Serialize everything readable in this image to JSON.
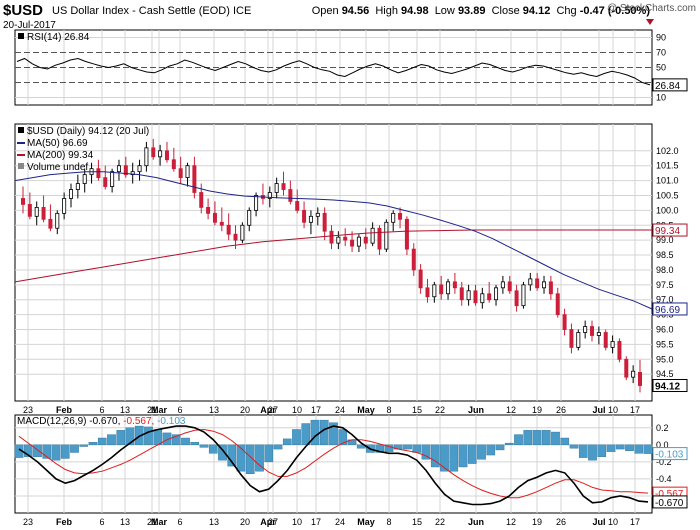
{
  "header": {
    "symbol": "$USD",
    "subtitle": "US Dollar Index - Cash Settle (EOD) ICE",
    "date": "20-Jul-2017",
    "open_label": "Open",
    "open": "94.56",
    "high_label": "High",
    "high": "94.98",
    "low_label": "Low",
    "low": "93.89",
    "close_label": "Close",
    "close": "94.12",
    "chg_label": "Chg",
    "chg": "-0.47 (-0.50%)",
    "chg_icon": "down-triangle-icon",
    "watermark": "@ StockCharts.com"
  },
  "colors": {
    "up": "#000000",
    "down": "#cc1f3a",
    "ma50": "#1d2488",
    "ma200": "#b0102a",
    "macd": "#000000",
    "signal": "#dd1f1f",
    "histogram": "#4a9bc8",
    "grid": "#d4d4d4"
  },
  "chart_data": [
    {
      "type": "line",
      "name": "rsi-panel",
      "legend": "RSI(14) 26.84",
      "value": 26.84,
      "value_label": "26.84",
      "ylim": [
        0,
        100
      ],
      "yticks": [
        90,
        70,
        50,
        30,
        10
      ],
      "ytick_labels": [
        "90",
        "70",
        "50",
        "30",
        "10"
      ],
      "series": [
        {
          "values": [
            58,
            62,
            55,
            50,
            48,
            53,
            56,
            60,
            62,
            58,
            55,
            52,
            50,
            52,
            55,
            50,
            47,
            44,
            43,
            47,
            52,
            55,
            60,
            57,
            53,
            49,
            46,
            50,
            54,
            58,
            55,
            50,
            46,
            44,
            47,
            52,
            56,
            59,
            55,
            50,
            47,
            45,
            40,
            38,
            43,
            48,
            52,
            55,
            52,
            47,
            43,
            46,
            50,
            54,
            52,
            47,
            44,
            42,
            45,
            48,
            52,
            56,
            54,
            50,
            46,
            44,
            47,
            51,
            53,
            52,
            49,
            46,
            43,
            41,
            43,
            40,
            38,
            42,
            45,
            43,
            40,
            36,
            30,
            26.84
          ]
        }
      ]
    },
    {
      "type": "bar",
      "name": "price-panel",
      "legend": {
        "main": "$USD (Daily) 94.12 (20 Jul)",
        "ma50": "MA(50) 96.69",
        "ma200": "MA(200) 99.34",
        "volume": "Volume undef"
      },
      "ylim": [
        93.6,
        102.9
      ],
      "yticks": [
        102,
        101.5,
        101,
        100.5,
        100,
        99.5,
        99,
        98.5,
        98,
        97.5,
        97,
        96.5,
        96,
        95.5,
        95,
        94.5
      ],
      "ytick_labels": [
        "102.0",
        "101.5",
        "101.0",
        "100.5",
        "100.0",
        "99.5",
        "99.0",
        "98.5",
        "98.0",
        "97.5",
        "97.0",
        "96.5",
        "96.0",
        "95.5",
        "95.0",
        "94.5"
      ],
      "price_tags": [
        {
          "label": "99.34",
          "value": 99.34,
          "color": "#b0102a"
        },
        {
          "label": "96.69",
          "value": 96.69,
          "color": "#1d2488"
        },
        {
          "label": "94.12",
          "value": 94.12,
          "color": "#000000"
        }
      ],
      "ohlc": [
        [
          100.4,
          100.8,
          99.9,
          100.2
        ],
        [
          100.2,
          100.6,
          99.7,
          99.8
        ],
        [
          99.8,
          100.3,
          99.5,
          100.1
        ],
        [
          100.1,
          100.5,
          99.6,
          99.7
        ],
        [
          99.7,
          100.2,
          99.3,
          99.4
        ],
        [
          99.4,
          100.0,
          99.2,
          99.9
        ],
        [
          99.9,
          100.6,
          99.7,
          100.4
        ],
        [
          100.4,
          100.9,
          100.1,
          100.7
        ],
        [
          100.7,
          101.2,
          100.4,
          100.9
        ],
        [
          100.9,
          101.4,
          100.6,
          101.2
        ],
        [
          101.2,
          101.6,
          100.9,
          101.4
        ],
        [
          101.4,
          101.7,
          101.0,
          101.1
        ],
        [
          101.1,
          101.5,
          100.7,
          100.8
        ],
        [
          100.8,
          101.4,
          100.6,
          101.3
        ],
        [
          101.3,
          101.7,
          101.0,
          101.5
        ],
        [
          101.5,
          101.8,
          101.1,
          101.2
        ],
        [
          101.2,
          101.6,
          100.9,
          101.3
        ],
        [
          101.3,
          101.7,
          101.0,
          101.5
        ],
        [
          101.5,
          102.3,
          101.3,
          102.1
        ],
        [
          102.1,
          102.4,
          101.7,
          101.8
        ],
        [
          101.8,
          102.2,
          101.5,
          102.0
        ],
        [
          102.0,
          102.3,
          101.6,
          101.7
        ],
        [
          101.7,
          102.1,
          101.3,
          101.4
        ],
        [
          101.4,
          101.8,
          100.9,
          101.1
        ],
        [
          101.1,
          101.6,
          100.8,
          101.5
        ],
        [
          101.5,
          101.8,
          100.4,
          100.6
        ],
        [
          100.6,
          100.9,
          99.9,
          100.1
        ],
        [
          100.1,
          100.4,
          99.7,
          99.9
        ],
        [
          99.9,
          100.3,
          99.5,
          99.6
        ],
        [
          99.6,
          100.1,
          99.3,
          99.5
        ],
        [
          99.5,
          99.9,
          99.0,
          99.2
        ],
        [
          99.2,
          99.5,
          98.7,
          99.0
        ],
        [
          99.0,
          99.6,
          98.9,
          99.5
        ],
        [
          99.5,
          100.1,
          99.3,
          100.0
        ],
        [
          100.0,
          100.6,
          99.8,
          100.5
        ],
        [
          100.5,
          100.9,
          100.2,
          100.4
        ],
        [
          100.4,
          100.8,
          100.1,
          100.6
        ],
        [
          100.6,
          101.1,
          100.4,
          100.9
        ],
        [
          100.9,
          101.3,
          100.5,
          100.7
        ],
        [
          100.7,
          101.0,
          100.2,
          100.3
        ],
        [
          100.3,
          100.7,
          99.9,
          100.0
        ],
        [
          100.0,
          100.3,
          99.4,
          99.6
        ],
        [
          99.6,
          100.0,
          99.2,
          99.8
        ],
        [
          99.8,
          100.1,
          99.5,
          99.9
        ],
        [
          99.9,
          100.1,
          99.0,
          99.3
        ],
        [
          99.3,
          99.5,
          98.7,
          98.9
        ],
        [
          98.9,
          99.3,
          98.7,
          99.1
        ],
        [
          99.1,
          99.4,
          98.8,
          99.0
        ],
        [
          99.0,
          99.3,
          98.6,
          98.8
        ],
        [
          98.8,
          99.2,
          98.6,
          99.1
        ],
        [
          99.1,
          99.4,
          98.7,
          98.9
        ],
        [
          98.9,
          99.6,
          98.8,
          99.4
        ],
        [
          99.4,
          99.5,
          98.5,
          98.7
        ],
        [
          98.7,
          99.7,
          98.6,
          99.6
        ],
        [
          99.6,
          100.0,
          99.3,
          99.9
        ],
        [
          99.9,
          100.1,
          99.4,
          99.7
        ],
        [
          99.7,
          99.8,
          98.5,
          98.7
        ],
        [
          98.7,
          98.9,
          97.8,
          98.0
        ],
        [
          98.0,
          98.2,
          97.2,
          97.4
        ],
        [
          97.4,
          97.7,
          96.9,
          97.1
        ],
        [
          97.1,
          97.6,
          96.9,
          97.5
        ],
        [
          97.5,
          97.8,
          97.0,
          97.2
        ],
        [
          97.2,
          97.7,
          97.0,
          97.6
        ],
        [
          97.6,
          97.9,
          97.2,
          97.4
        ],
        [
          97.4,
          97.6,
          96.8,
          97.0
        ],
        [
          97.0,
          97.5,
          96.8,
          97.3
        ],
        [
          97.3,
          97.5,
          96.8,
          96.9
        ],
        [
          96.9,
          97.4,
          96.7,
          97.2
        ],
        [
          97.2,
          97.6,
          96.9,
          97.0
        ],
        [
          97.0,
          97.5,
          96.8,
          97.4
        ],
        [
          97.4,
          97.8,
          97.2,
          97.6
        ],
        [
          97.6,
          97.8,
          97.2,
          97.3
        ],
        [
          97.3,
          97.5,
          96.6,
          96.8
        ],
        [
          96.8,
          97.6,
          96.7,
          97.5
        ],
        [
          97.5,
          97.9,
          97.3,
          97.7
        ],
        [
          97.7,
          97.9,
          97.3,
          97.4
        ],
        [
          97.4,
          97.8,
          97.2,
          97.6
        ],
        [
          97.6,
          97.8,
          97.0,
          97.2
        ],
        [
          97.2,
          97.4,
          96.4,
          96.5
        ],
        [
          96.5,
          96.7,
          95.8,
          96.0
        ],
        [
          96.0,
          96.2,
          95.2,
          95.4
        ],
        [
          95.4,
          96.0,
          95.3,
          95.9
        ],
        [
          95.9,
          96.3,
          95.7,
          96.1
        ],
        [
          96.1,
          96.3,
          95.6,
          95.8
        ],
        [
          95.8,
          96.1,
          95.5,
          95.9
        ],
        [
          95.9,
          96.0,
          95.3,
          95.4
        ],
        [
          95.4,
          95.8,
          95.2,
          95.6
        ],
        [
          95.6,
          95.7,
          94.9,
          95.0
        ],
        [
          95.0,
          95.1,
          94.3,
          94.4
        ],
        [
          94.4,
          94.8,
          94.2,
          94.6
        ],
        [
          94.56,
          94.98,
          93.89,
          94.12
        ]
      ],
      "ma50": [
        101.0,
        101.1,
        101.2,
        101.25,
        101.3,
        101.3,
        101.25,
        101.2,
        101.1,
        100.95,
        100.8,
        100.65,
        100.55,
        100.48,
        100.45,
        100.42,
        100.4,
        100.38,
        100.35,
        100.3,
        100.25,
        100.15,
        100.0,
        99.85,
        99.68,
        99.5,
        99.3,
        99.05,
        98.75,
        98.45,
        98.15,
        97.85,
        97.6,
        97.35,
        97.15,
        96.95,
        96.69
      ],
      "ma200": [
        97.6,
        97.7,
        97.8,
        97.9,
        98.0,
        98.1,
        98.2,
        98.3,
        98.4,
        98.5,
        98.6,
        98.7,
        98.8,
        98.87,
        98.95,
        99.0,
        99.05,
        99.1,
        99.15,
        99.2,
        99.24,
        99.27,
        99.3,
        99.31,
        99.32,
        99.33,
        99.34,
        99.34,
        99.34,
        99.34,
        99.34,
        99.34,
        99.34,
        99.34,
        99.34,
        99.34,
        99.34
      ]
    },
    {
      "type": "line",
      "name": "macd-panel",
      "legend": {
        "label": "MACD(12,26,9)",
        "macd": "-0.670",
        "signal": "-0.567",
        "hist": "-0.103"
      },
      "ylim": [
        -0.8,
        0.35
      ],
      "yticks": [
        0.2,
        0.0,
        -0.2,
        -0.4,
        -0.6
      ],
      "ytick_labels": [
        "0.2",
        "0.0",
        "-0.2",
        "-0.4",
        "-0.6"
      ],
      "tags": [
        {
          "label": "-0.103",
          "value": -0.103,
          "color": "#4a9bc8"
        },
        {
          "label": "-0.567",
          "value": -0.567,
          "color": "#dd1f1f"
        },
        {
          "label": "-0.670",
          "value": -0.67,
          "color": "#000000"
        }
      ],
      "series": [
        {
          "name": "MACD(12,26,9)",
          "values": [
            -0.05,
            -0.12,
            -0.2,
            -0.3,
            -0.4,
            -0.45,
            -0.42,
            -0.36,
            -0.3,
            -0.23,
            -0.15,
            -0.06,
            0.02,
            0.1,
            0.15,
            0.18,
            0.2,
            0.22,
            0.22,
            0.2,
            0.15,
            0.06,
            -0.06,
            -0.2,
            -0.35,
            -0.48,
            -0.55,
            -0.52,
            -0.42,
            -0.3,
            -0.15,
            -0.02,
            0.1,
            0.18,
            0.22,
            0.2,
            0.12,
            0.02,
            -0.05,
            -0.08,
            -0.1,
            -0.1,
            -0.12,
            -0.18,
            -0.3,
            -0.45,
            -0.58,
            -0.66,
            -0.68,
            -0.7,
            -0.7,
            -0.69,
            -0.66,
            -0.6,
            -0.5,
            -0.42,
            -0.38,
            -0.33,
            -0.3,
            -0.33,
            -0.45,
            -0.6,
            -0.68,
            -0.67,
            -0.62,
            -0.6,
            -0.62,
            -0.66,
            -0.67
          ]
        },
        {
          "name": "signal",
          "values": [
            0.1,
            0.02,
            -0.06,
            -0.14,
            -0.22,
            -0.29,
            -0.33,
            -0.34,
            -0.33,
            -0.31,
            -0.27,
            -0.23,
            -0.18,
            -0.12,
            -0.06,
            0.0,
            0.06,
            0.1,
            0.14,
            0.17,
            0.18,
            0.16,
            0.12,
            0.05,
            -0.04,
            -0.14,
            -0.24,
            -0.32,
            -0.37,
            -0.37,
            -0.33,
            -0.27,
            -0.19,
            -0.11,
            -0.04,
            0.02,
            0.06,
            0.06,
            0.04,
            0.01,
            -0.02,
            -0.05,
            -0.07,
            -0.09,
            -0.13,
            -0.19,
            -0.27,
            -0.35,
            -0.42,
            -0.48,
            -0.53,
            -0.57,
            -0.6,
            -0.62,
            -0.62,
            -0.59,
            -0.55,
            -0.5,
            -0.45,
            -0.41,
            -0.41,
            -0.45,
            -0.5,
            -0.53,
            -0.54,
            -0.55,
            -0.55,
            -0.56,
            -0.567
          ]
        },
        {
          "name": "histogram",
          "values": [
            -0.15,
            -0.14,
            -0.14,
            -0.16,
            -0.18,
            -0.16,
            -0.09,
            -0.02,
            0.03,
            0.08,
            0.12,
            0.17,
            0.2,
            0.22,
            0.21,
            0.18,
            0.14,
            0.12,
            0.08,
            0.03,
            -0.03,
            -0.1,
            -0.18,
            -0.25,
            -0.31,
            -0.34,
            -0.31,
            -0.2,
            -0.05,
            0.07,
            0.18,
            0.25,
            0.29,
            0.29,
            0.26,
            0.18,
            0.06,
            -0.04,
            -0.09,
            -0.09,
            -0.08,
            -0.05,
            -0.05,
            -0.09,
            -0.17,
            -0.26,
            -0.31,
            -0.31,
            -0.26,
            -0.22,
            -0.17,
            -0.12,
            -0.06,
            0.02,
            0.12,
            0.17,
            0.17,
            0.17,
            0.15,
            0.08,
            -0.04,
            -0.15,
            -0.18,
            -0.14,
            -0.08,
            -0.05,
            -0.07,
            -0.1,
            -0.103
          ]
        }
      ]
    }
  ],
  "x_axis": {
    "labels": [
      {
        "text": "23",
        "bold": false
      },
      {
        "text": "Feb",
        "bold": true
      },
      {
        "text": "6",
        "bold": false
      },
      {
        "text": "13",
        "bold": false
      },
      {
        "text": "21",
        "bold": false
      },
      {
        "text": "Mar",
        "bold": true
      },
      {
        "text": "6",
        "bold": false
      },
      {
        "text": "13",
        "bold": false
      },
      {
        "text": "20",
        "bold": false
      },
      {
        "text": "27",
        "bold": false
      },
      {
        "text": "Apr",
        "bold": true
      },
      {
        "text": "10",
        "bold": false
      },
      {
        "text": "17",
        "bold": false
      },
      {
        "text": "24",
        "bold": false
      },
      {
        "text": "May",
        "bold": true
      },
      {
        "text": "8",
        "bold": false
      },
      {
        "text": "15",
        "bold": false
      },
      {
        "text": "22",
        "bold": false
      },
      {
        "text": "Jun",
        "bold": true
      },
      {
        "text": "12",
        "bold": false
      },
      {
        "text": "19",
        "bold": false
      },
      {
        "text": "26",
        "bold": false
      },
      {
        "text": "Jul",
        "bold": true
      },
      {
        "text": "10",
        "bold": false
      },
      {
        "text": "17",
        "bold": false
      }
    ]
  }
}
